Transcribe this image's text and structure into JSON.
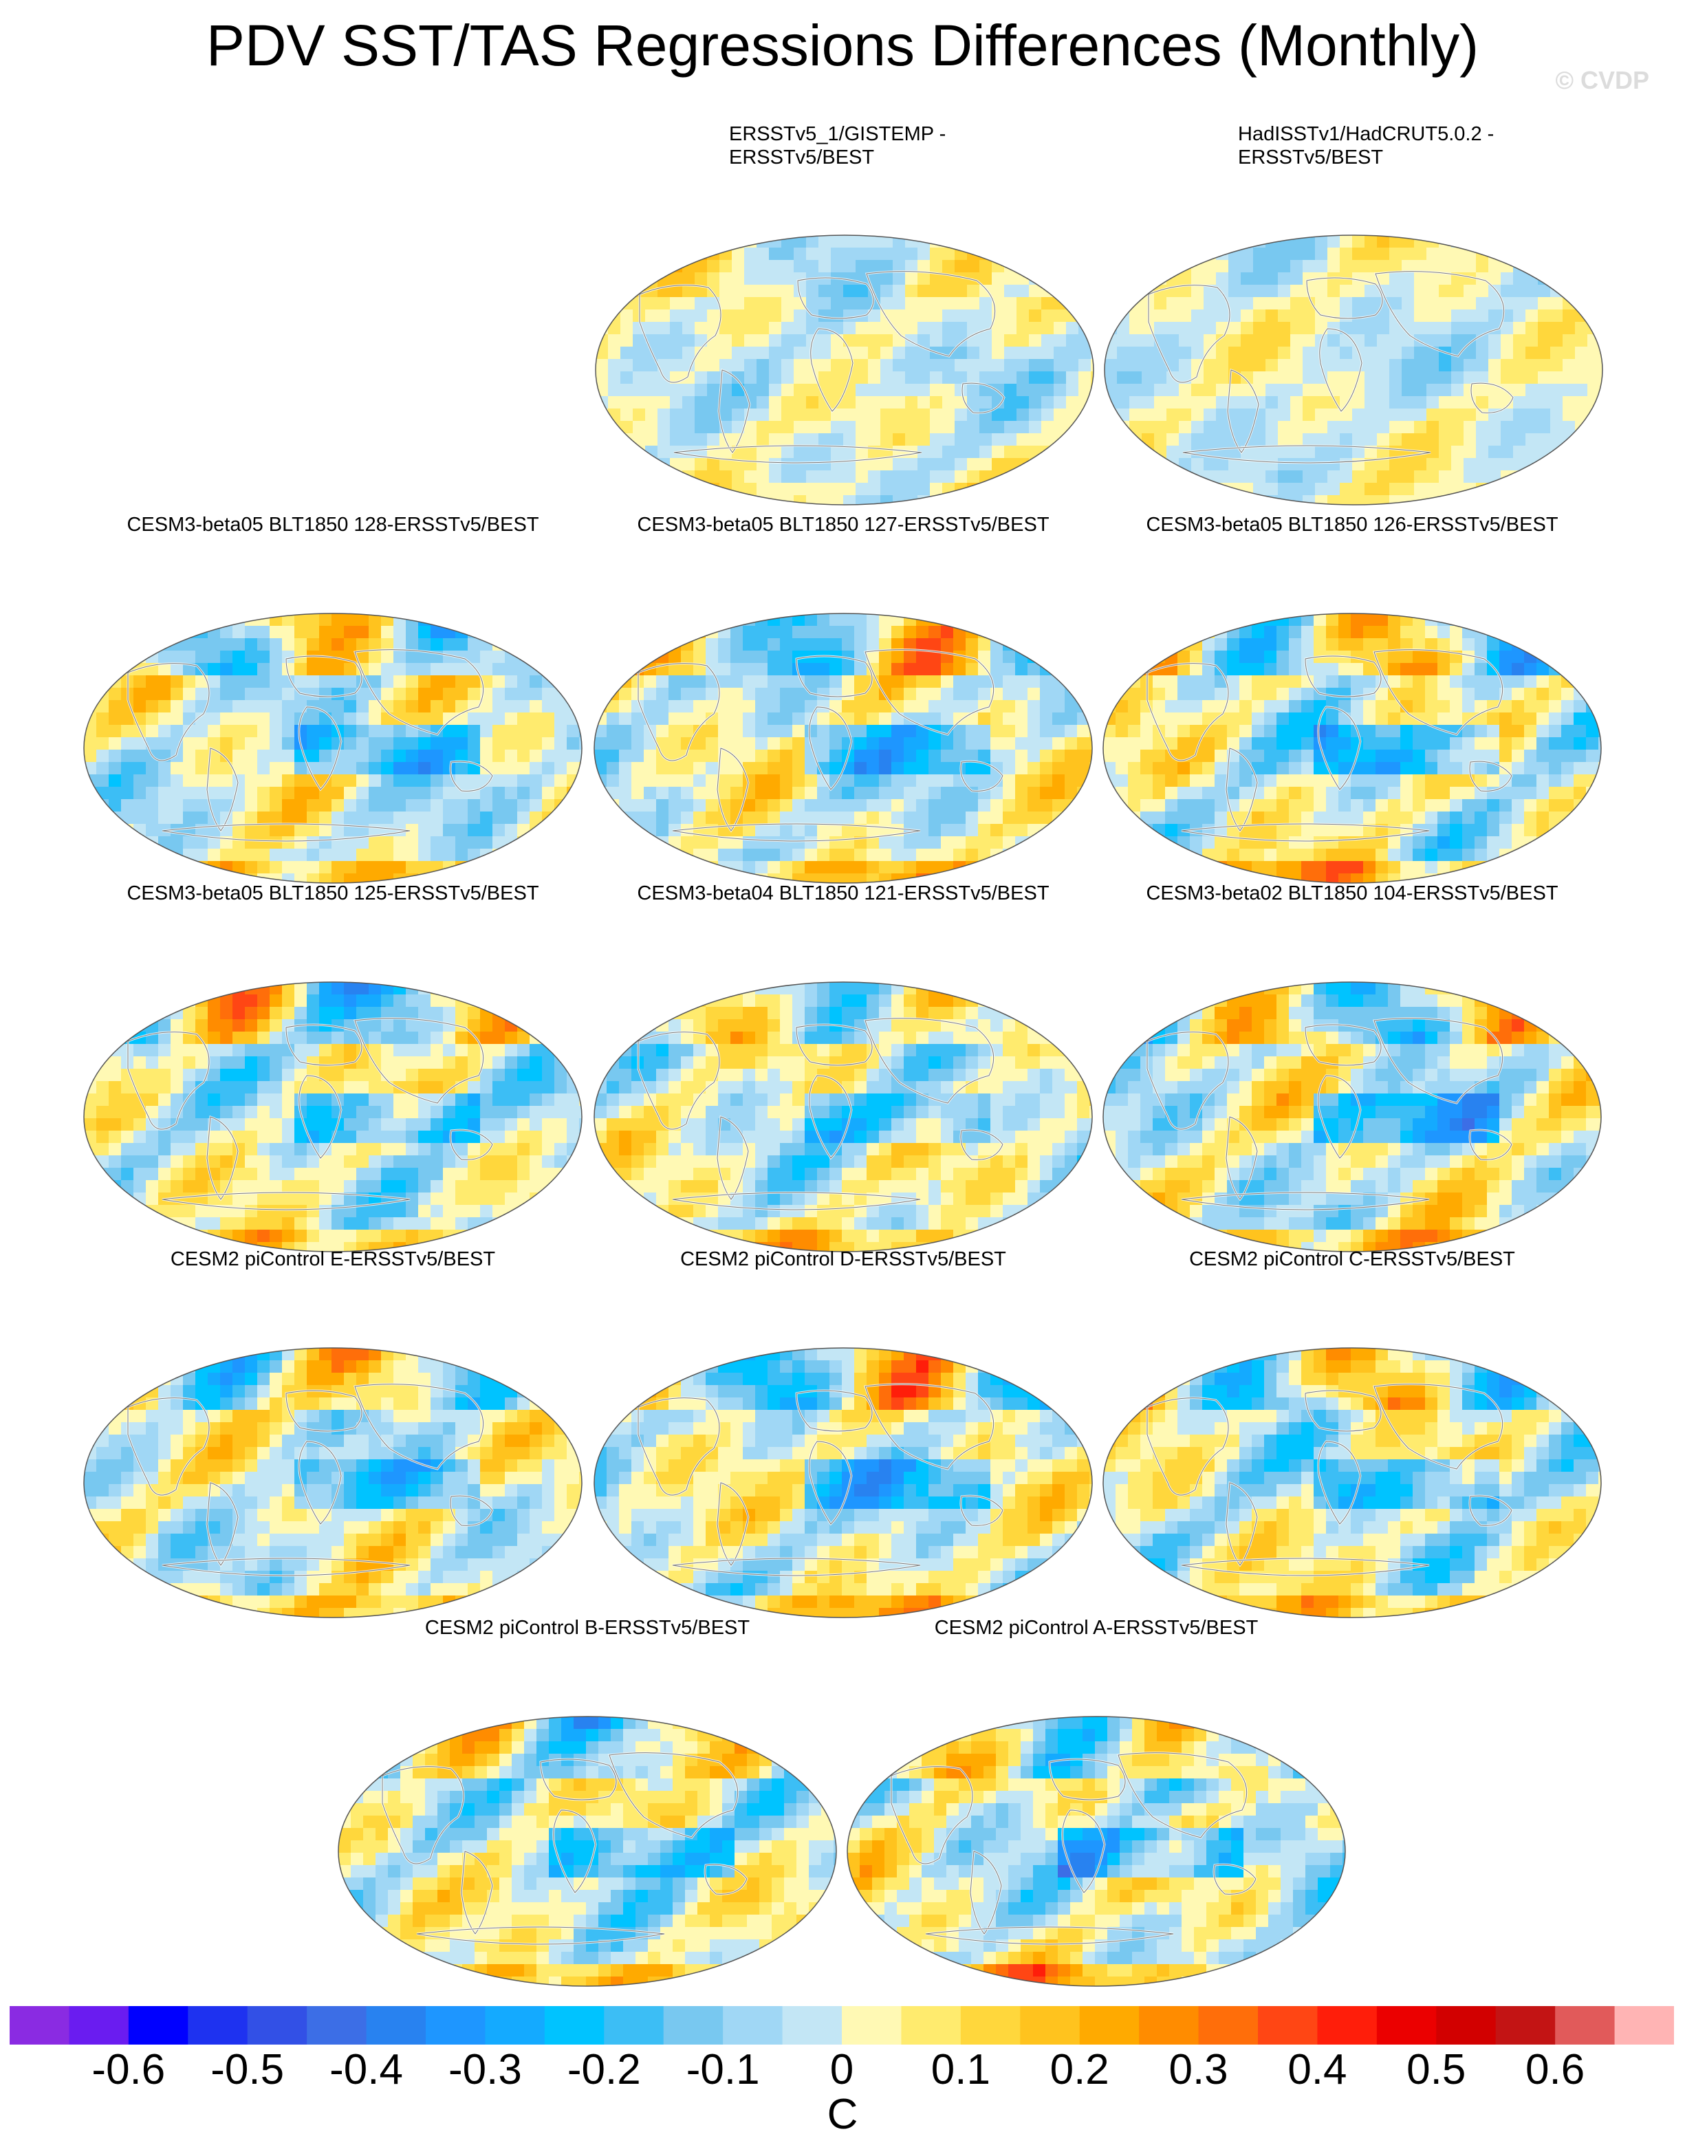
{
  "title": "PDV SST/TAS Regressions Differences (Monthly)",
  "watermark": "© CVDP",
  "panels": [
    {
      "label": "ERSSTv5_1/GISTEMP -\nERSSTv5/BEST",
      "intensity": 0.35,
      "seed": 3
    },
    {
      "label": "HadISSTv1/HadCRUT5.0.2 -\nERSSTv5/BEST",
      "intensity": 0.18,
      "seed": 7
    },
    {
      "label": "CESM3-beta05 BLT1850 128-ERSSTv5/BEST",
      "intensity": 0.9,
      "seed": 11
    },
    {
      "label": "CESM3-beta05 BLT1850 127-ERSSTv5/BEST",
      "intensity": 0.85,
      "seed": 13
    },
    {
      "label": "CESM3-beta05 BLT1850 126-ERSSTv5/BEST",
      "intensity": 1.0,
      "seed": 17
    },
    {
      "label": "CESM3-beta05 BLT1850 125-ERSSTv5/BEST",
      "intensity": 0.85,
      "seed": 19
    },
    {
      "label": "CESM3-beta04 BLT1850 121-ERSSTv5/BEST",
      "intensity": 0.8,
      "seed": 23
    },
    {
      "label": "CESM3-beta02 BLT1850 104-ERSSTv5/BEST",
      "intensity": 0.95,
      "seed": 29
    },
    {
      "label": "CESM2 piControl E-ERSSTv5/BEST",
      "intensity": 0.8,
      "seed": 31
    },
    {
      "label": "CESM2 piControl D-ERSSTv5/BEST",
      "intensity": 0.85,
      "seed": 37
    },
    {
      "label": "CESM2 piControl C-ERSSTv5/BEST",
      "intensity": 0.9,
      "seed": 41
    },
    {
      "label": "CESM2 piControl B-ERSSTv5/BEST",
      "intensity": 0.85,
      "seed": 43
    },
    {
      "label": "CESM2 piControl A-ERSSTv5/BEST",
      "intensity": 1.0,
      "seed": 47
    }
  ],
  "colorbar": {
    "colors": [
      "#8a2be2",
      "#6a1cf0",
      "#0000ff",
      "#1e32f0",
      "#3250e6",
      "#3c6ee6",
      "#2882f0",
      "#1e96ff",
      "#14aaff",
      "#00c3ff",
      "#3cbef5",
      "#78c8f0",
      "#a0d7f5",
      "#c3e6f5",
      "#fff9b4",
      "#ffeb6e",
      "#ffd73c",
      "#ffc31e",
      "#ffaa00",
      "#ff8c00",
      "#ff6e0a",
      "#ff4614",
      "#ff1e0a",
      "#eb0000",
      "#d20000",
      "#c31414",
      "#e15a5a",
      "#ffb4b4"
    ],
    "labels": [
      "-0.6",
      "-0.5",
      "-0.4",
      "-0.3",
      "-0.2",
      "-0.1",
      "0",
      "0.1",
      "0.2",
      "0.3",
      "0.4",
      "0.5",
      "0.6"
    ],
    "units": "C"
  }
}
